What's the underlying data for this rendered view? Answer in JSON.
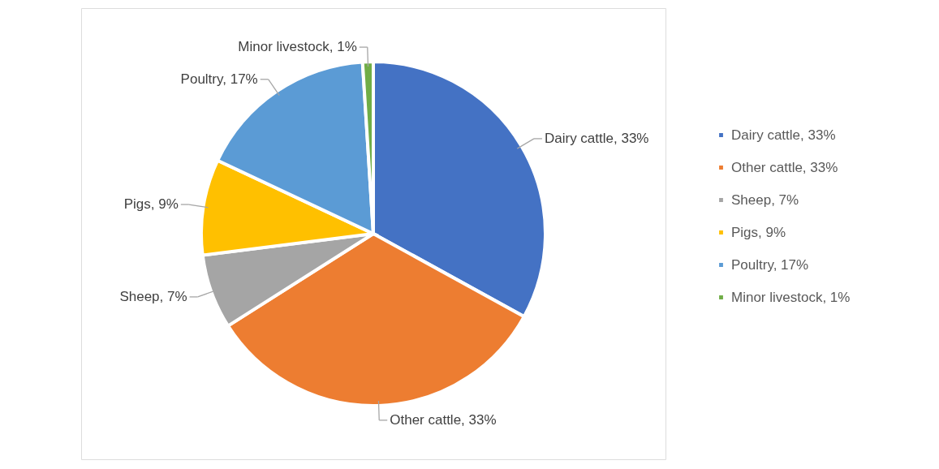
{
  "chart_data": {
    "type": "pie",
    "categories": [
      "Dairy cattle, 33%",
      "Other cattle, 33%",
      "Sheep, 7%",
      "Pigs, 9%",
      "Poultry, 17%",
      "Minor livestock, 1%"
    ],
    "values": [
      33,
      33,
      7,
      9,
      17,
      1
    ],
    "colors": [
      "#4472c4",
      "#ed7d31",
      "#a5a5a5",
      "#ffc000",
      "#5b9bd5",
      "#70ad47"
    ],
    "value_labels": [
      "Dairy cattle, 33%",
      "Other cattle, 33%",
      "Sheep, 7%",
      "Pigs, 9%",
      "Poultry, 17%",
      "Minor livestock, 1%"
    ],
    "legend": "right"
  }
}
